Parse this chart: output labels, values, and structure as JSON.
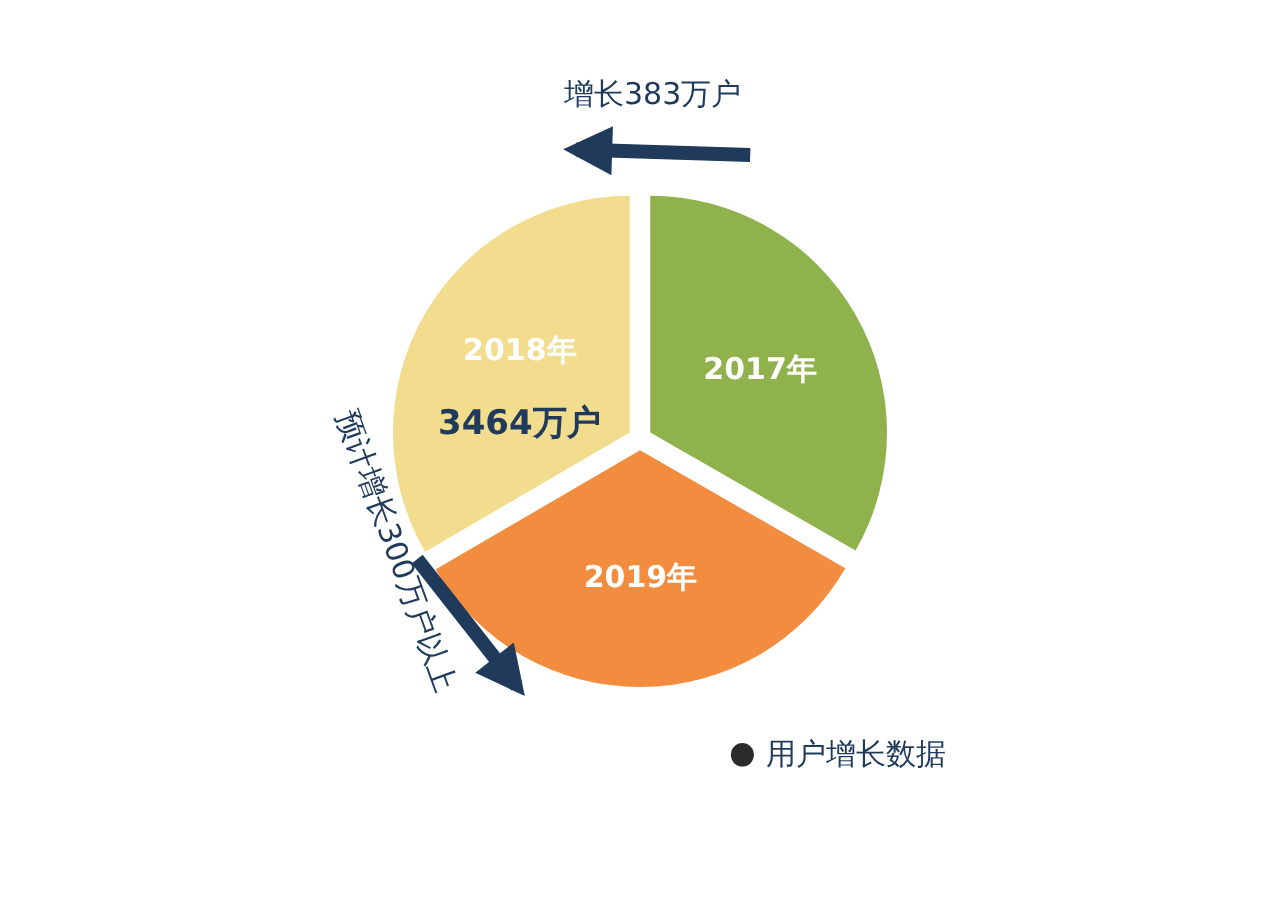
{
  "chart_data": {
    "type": "pie",
    "categories": [
      "2017年",
      "2019年",
      "2018年"
    ],
    "values": [
      33.3,
      33.3,
      33.4
    ],
    "colors": [
      "#8fb24c",
      "#f28c3e",
      "#f2dc8e"
    ],
    "annotations": [
      "增长383万户",
      "预计增长300万户以上",
      "用户增长数据",
      "3464万户"
    ],
    "legend": false
  }
}
